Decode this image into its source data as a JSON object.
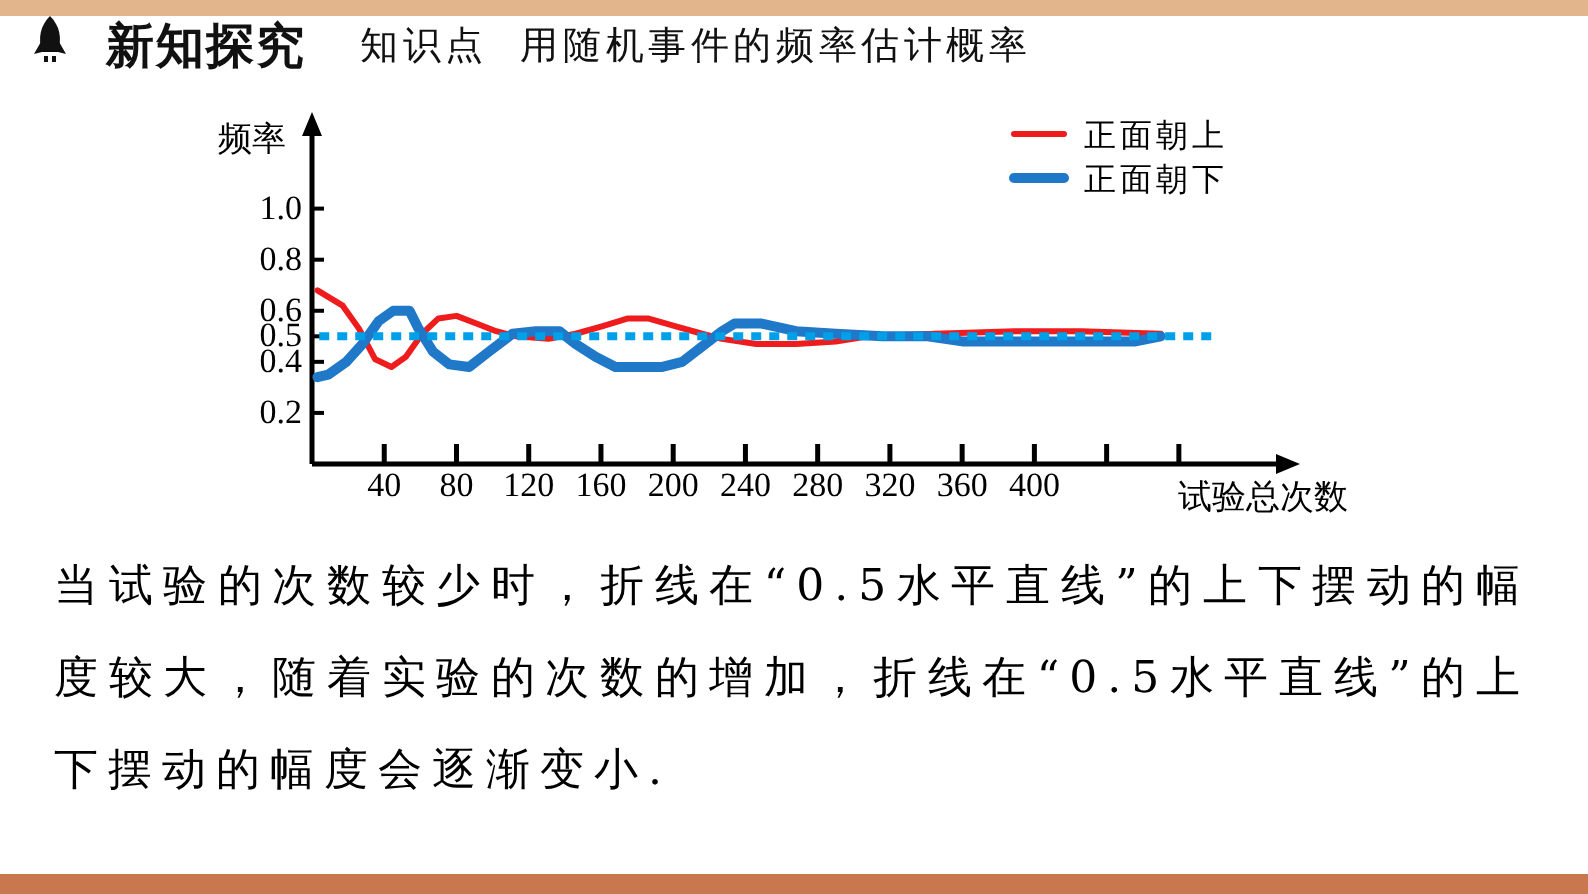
{
  "chart_data": {
    "type": "line",
    "title": "新知探究",
    "subtitle": "知识点 用随机事件的频率估计概率",
    "xlabel": "试验总次数",
    "ylabel": "频率",
    "xlim": [
      0,
      536
    ],
    "ylim": [
      0,
      1.3
    ],
    "xticks": [
      40,
      80,
      120,
      160,
      200,
      240,
      280,
      320,
      360,
      400,
      {
        "value": 440,
        "label": null
      },
      {
        "value": 480,
        "label": null
      }
    ],
    "yticks": [
      0.2,
      0.4,
      0.5,
      0.6,
      0.8,
      {
        "value": 1,
        "label": "1.0"
      }
    ],
    "legend": "top right",
    "series": [
      {
        "name": "正面朝上",
        "color": "#ee1c1c",
        "x": [
          3,
          17,
          26,
          35,
          44,
          52,
          61,
          70,
          80,
          91,
          102,
          113,
          131,
          146,
          161,
          175,
          186,
          201,
          216,
          227,
          246,
          268,
          290,
          308,
          345,
          389,
          426,
          470
        ],
        "values": [
          0.68,
          0.62,
          0.53,
          0.41,
          0.38,
          0.42,
          0.51,
          0.57,
          0.58,
          0.55,
          0.52,
          0.5,
          0.49,
          0.51,
          0.54,
          0.57,
          0.57,
          0.54,
          0.51,
          0.49,
          0.47,
          0.47,
          0.48,
          0.5,
          0.51,
          0.52,
          0.52,
          0.51
        ]
      },
      {
        "name": "正面朝下",
        "color": "#1f78c8",
        "x": [
          3,
          9,
          19,
          28,
          37,
          45,
          54,
          59,
          67,
          76,
          87,
          98,
          111,
          124,
          137,
          146,
          157,
          168,
          183,
          194,
          205,
          216,
          227,
          234,
          249,
          268,
          290,
          316,
          341,
          360,
          389,
          426,
          456,
          470
        ],
        "values": [
          0.34,
          0.35,
          0.4,
          0.47,
          0.56,
          0.6,
          0.6,
          0.53,
          0.44,
          0.39,
          0.38,
          0.44,
          0.51,
          0.52,
          0.52,
          0.47,
          0.42,
          0.38,
          0.38,
          0.38,
          0.4,
          0.46,
          0.52,
          0.55,
          0.55,
          0.52,
          0.51,
          0.5,
          0.5,
          0.48,
          0.48,
          0.48,
          0.48,
          0.5
        ]
      },
      {
        "color": "#00a0e9",
        "line_style": "dotted",
        "x": [
          4,
          500
        ],
        "values": [
          0.5,
          0.5
        ]
      }
    ],
    "annotations": [
      "当试验的次数较少时，折线在“0.5水平直线”的上下摆动的幅度较大，随着实验的次数的增加，折线在“0.5水平直线”的上下摆动的幅度会逐渐变小."
    ]
  }
}
